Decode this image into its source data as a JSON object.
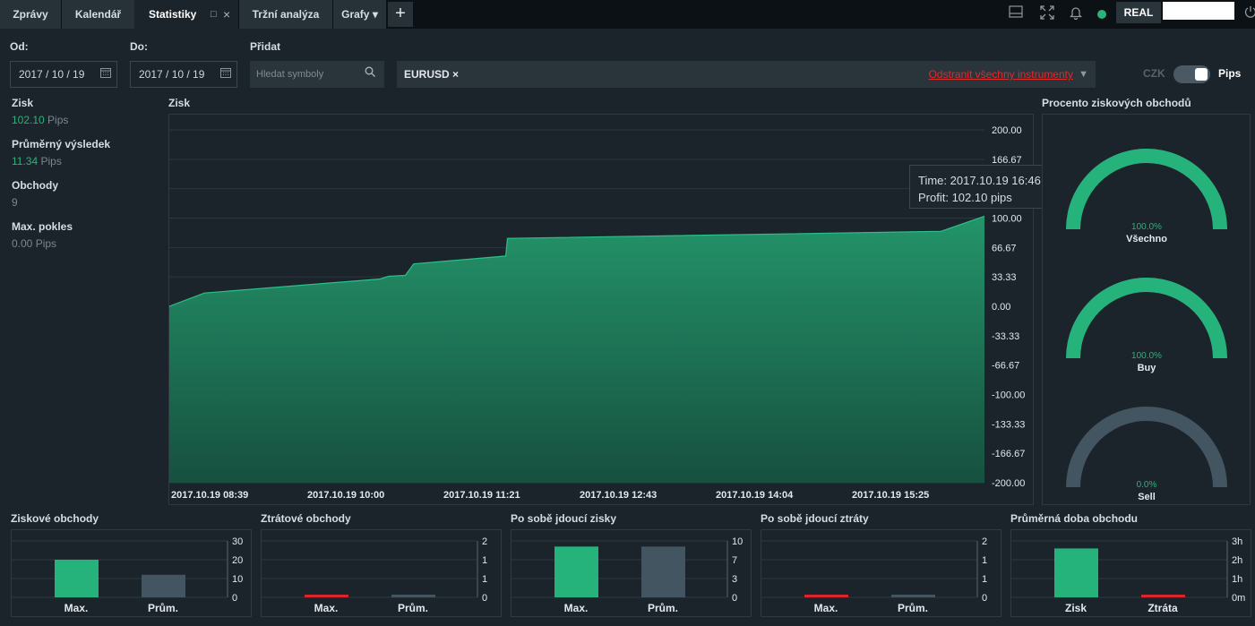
{
  "tabs": [
    {
      "label": "Zprávy"
    },
    {
      "label": "Kalendář"
    },
    {
      "label": "Statistiky"
    },
    {
      "label": "Tržní analýza"
    },
    {
      "label": "Grafy"
    }
  ],
  "tab_controls": {
    "restore": "□",
    "close": "×",
    "dropdown": "▾",
    "add": "+"
  },
  "topbar": {
    "account_type": "REAL",
    "status_color": "#2bb27a"
  },
  "filters": {
    "from_label": "Od:",
    "from_value": "2017 / 10 / 19",
    "to_label": "Do:",
    "to_value": "2017 / 10 / 19",
    "add_label": "Přidat",
    "search_placeholder": "Hledat symboly",
    "instrument": "EURUSD",
    "instrument_remove": "×",
    "remove_all": "Odstranit všechny instrumenty",
    "currency": "CZK",
    "unit": "Pips"
  },
  "stats": [
    {
      "label": "Zisk",
      "value": "102.10",
      "unit": "Pips"
    },
    {
      "label": "Průměrný výsledek",
      "value": "11.34",
      "unit": "Pips"
    },
    {
      "label": "Obchody",
      "value": "9",
      "unit": ""
    },
    {
      "label": "Max. pokles",
      "value": "0.00",
      "unit": "Pips"
    }
  ],
  "profit_chart": {
    "title": "Zisk",
    "tooltip": {
      "time": "Time: 2017.10.19 16:46",
      "profit": "Profit: 102.10 pips"
    }
  },
  "gauges_title": "Procento ziskových obchodů",
  "colors": {
    "green": "#26b27b",
    "gray": "#435560",
    "red": "#d9262c",
    "bg": "#1b242b"
  },
  "chart_data": [
    {
      "type": "area",
      "title": "Zisk",
      "x": [
        "2017.10.19 08:39",
        "2017.10.19 09:00",
        "2017.10.19 10:45",
        "2017.10.19 10:50",
        "2017.10.19 11:00",
        "2017.10.19 11:05",
        "2017.10.19 12:00",
        "2017.10.19 12:01",
        "2017.10.19 16:20",
        "2017.10.19 16:46"
      ],
      "y": [
        0,
        15,
        31,
        34,
        35,
        48,
        57,
        77,
        85,
        102.1
      ],
      "x_ticks": [
        "2017.10.19 08:39",
        "2017.10.19 10:00",
        "2017.10.19 11:21",
        "2017.10.19 12:43",
        "2017.10.19 14:04",
        "2017.10.19 15:25"
      ],
      "y_ticks": [
        "200.00",
        "166.67",
        "133.33",
        "100.00",
        "66.67",
        "33.33",
        "0.00",
        "-33.33",
        "-66.67",
        "-100.00",
        "-133.33",
        "-166.67",
        "-200.00"
      ],
      "ylim": [
        -200,
        200
      ],
      "grid": true
    },
    {
      "type": "pie",
      "title": "Procento ziskových obchodů",
      "categories": [
        "Všechno",
        "Buy",
        "Sell"
      ],
      "values": [
        100.0,
        100.0,
        0.0
      ],
      "labels": [
        "100.0%",
        "100.0%",
        "0.0%"
      ]
    },
    {
      "type": "bar",
      "title": "Ziskové obchody",
      "categories": [
        "Max.",
        "Prům."
      ],
      "values": [
        20,
        12
      ],
      "ylim": [
        0,
        30
      ],
      "y_ticks": [
        "30",
        "20",
        "10",
        "0"
      ]
    },
    {
      "type": "bar",
      "title": "Ztrátové obchody",
      "categories": [
        "Max.",
        "Prům."
      ],
      "values": [
        0.05,
        0.05
      ],
      "ylim": [
        0,
        2
      ],
      "y_ticks": [
        "2",
        "1",
        "1",
        "0"
      ]
    },
    {
      "type": "bar",
      "title": "Po sobě jdoucí zisky",
      "categories": [
        "Max.",
        "Prům."
      ],
      "values": [
        9,
        9
      ],
      "ylim": [
        0,
        10
      ],
      "y_ticks": [
        "10",
        "7",
        "3",
        "0"
      ]
    },
    {
      "type": "bar",
      "title": "Po sobě jdoucí ztráty",
      "categories": [
        "Max.",
        "Prům."
      ],
      "values": [
        0.05,
        0.05
      ],
      "ylim": [
        0,
        2
      ],
      "y_ticks": [
        "2",
        "1",
        "1",
        "0"
      ]
    },
    {
      "type": "bar",
      "title": "Průměrná doba obchodu",
      "categories": [
        "Zisk",
        "Ztráta"
      ],
      "values": [
        2.6,
        0.05
      ],
      "ylim": [
        0,
        3
      ],
      "y_ticks": [
        "3h",
        "2h",
        "1h",
        "0m"
      ]
    }
  ]
}
